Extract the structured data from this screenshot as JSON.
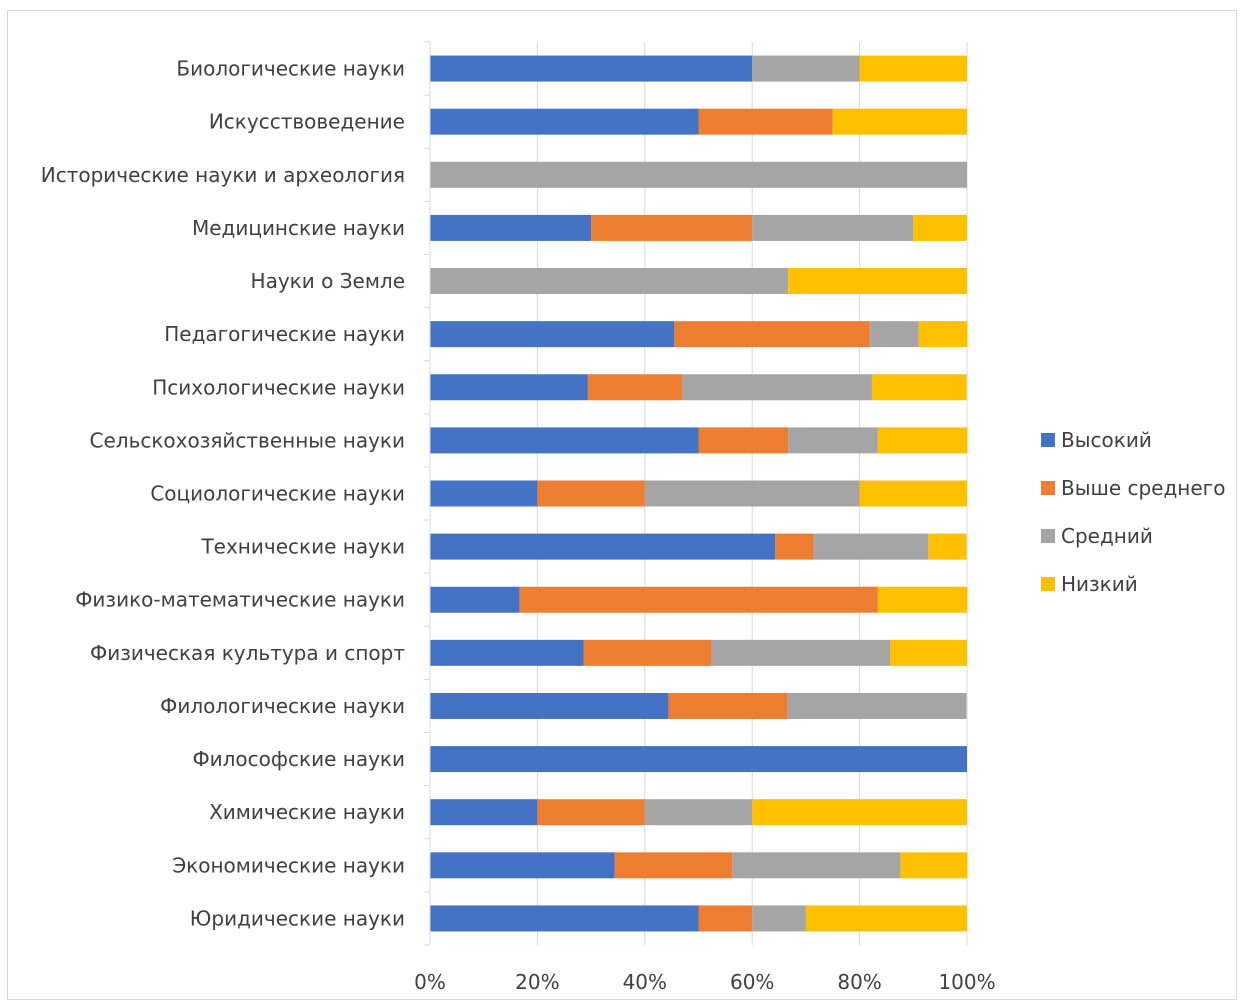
{
  "chart_data": {
    "type": "bar",
    "orientation": "horizontal",
    "stacked": "percent",
    "categories": [
      "Биологические науки",
      "Искусствоведение",
      "Исторические науки и археология",
      "Медицинские науки",
      "Науки о Земле",
      "Педагогические науки",
      "Психологические науки",
      "Сельскохозяйственные науки",
      "Социологические науки",
      "Технические науки",
      "Физико-математические науки",
      "Физическая культура и спорт",
      "Филологические науки",
      "Философские науки",
      "Химические науки",
      "Экономические науки",
      "Юридические науки"
    ],
    "series": [
      {
        "name": "Высокий",
        "color": "#4472C4",
        "values": [
          60,
          50,
          0,
          30,
          0,
          45.5,
          29.4,
          50,
          20,
          64.3,
          16.7,
          28.6,
          44.4,
          100,
          20,
          34.4,
          50
        ]
      },
      {
        "name": "Выше среднего",
        "color": "#ED7D31",
        "values": [
          0,
          25,
          0,
          30,
          0,
          36.4,
          17.6,
          16.7,
          20,
          7.1,
          66.7,
          23.8,
          22.2,
          0,
          20,
          21.9,
          10
        ]
      },
      {
        "name": "Средний",
        "color": "#A5A5A5",
        "values": [
          20,
          0,
          100,
          30,
          66.7,
          9.1,
          35.3,
          16.7,
          40,
          21.4,
          0,
          33.3,
          33.3,
          0,
          20,
          31.3,
          10
        ]
      },
      {
        "name": "Низкий",
        "color": "#FFC000",
        "values": [
          20,
          25,
          0,
          10,
          33.3,
          9.1,
          17.6,
          16.7,
          20,
          7.1,
          16.7,
          14.3,
          0,
          0,
          40,
          12.5,
          30
        ]
      }
    ],
    "x_ticks": [
      "0%",
      "20%",
      "40%",
      "60%",
      "80%",
      "100%"
    ],
    "xlim": [
      0,
      100
    ],
    "grid": true,
    "legend_position": "right"
  }
}
